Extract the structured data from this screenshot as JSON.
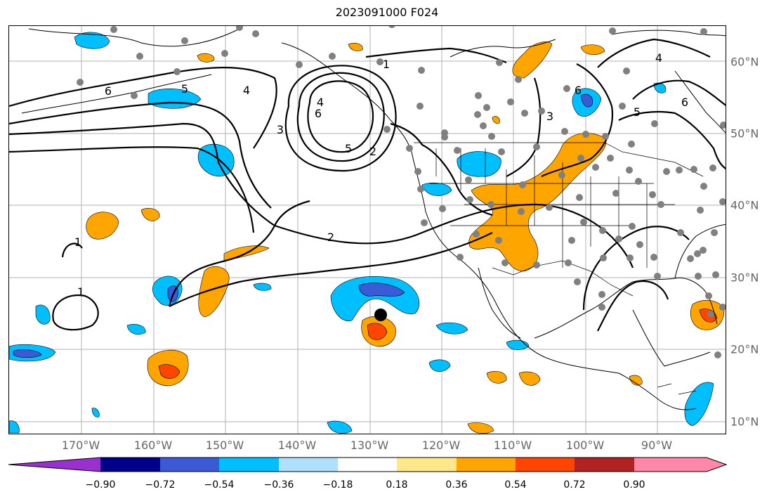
{
  "title": "2023091000 F024",
  "lon_labels": [
    "170°W",
    "160°W",
    "150°W",
    "140°W",
    "130°W",
    "120°W",
    "110°W",
    "100°W",
    "90°W"
  ],
  "lat_labels": [
    "60°N",
    "50°N",
    "40°N",
    "30°N",
    "20°N",
    "10°N"
  ],
  "contour_labels": [
    "1",
    "1",
    "1",
    "2",
    "2",
    "3",
    "3",
    "4",
    "4",
    "4",
    "5",
    "5",
    "5",
    "6",
    "6",
    "6",
    "6"
  ],
  "colorbar": {
    "tick_labels": [
      "−0.90",
      "−0.72",
      "−0.54",
      "−0.36",
      "−0.18",
      "0.18",
      "0.36",
      "0.54",
      "0.72",
      "0.90"
    ],
    "colors": [
      "#9b30d0",
      "#00008b",
      "#3b5bd6",
      "#00bfff",
      "#b0e0ff",
      "#ffffff",
      "#ffe88a",
      "#ffa500",
      "#ff4500",
      "#b22222",
      "#ff88aa"
    ]
  },
  "markers": {
    "center_marker_color": "#000000",
    "station_color": "#808080"
  }
}
